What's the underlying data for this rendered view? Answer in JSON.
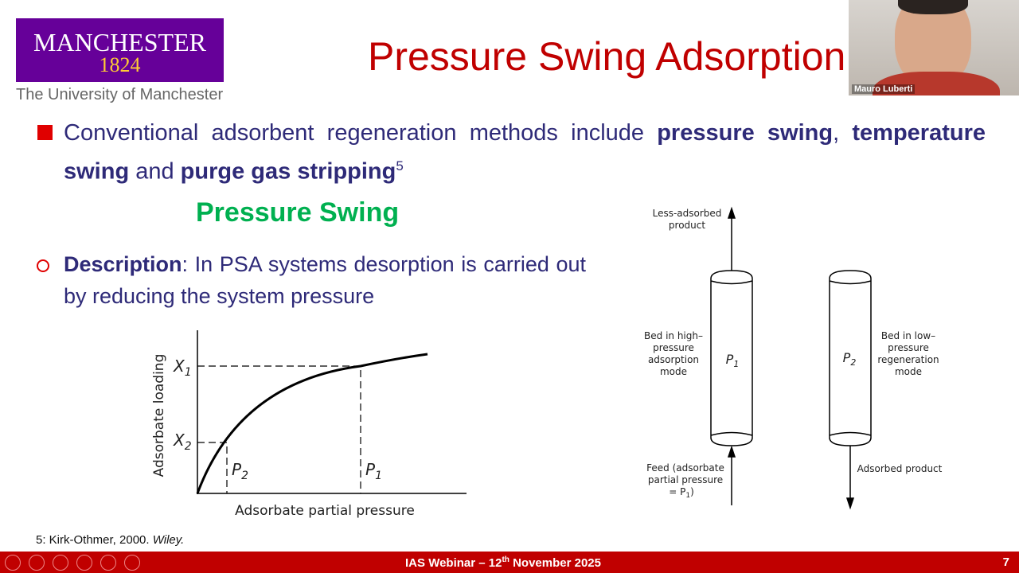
{
  "logo": {
    "name": "MANCHESTER",
    "year": "1824",
    "university": "The University of Manchester"
  },
  "slide": {
    "title": "Pressure Swing Adsorption",
    "bullet1": {
      "text": "Conventional adsorbent regeneration methods include ",
      "bold1": "pressure swing",
      "sep": ",",
      "bold2": "temperature swing",
      "and": " and ",
      "bold3": "purge gas stripping",
      "ref": "5"
    },
    "subheading": "Pressure Swing",
    "bullet2": {
      "bold": "Description",
      "text": ": In PSA systems desorption is carried out by reducing the system pressure"
    },
    "graph": {
      "y_label": "Adsorbate loading",
      "x_label": "Adsorbate partial pressure",
      "x1": {
        "main": "X",
        "sub": "1"
      },
      "x2": {
        "main": "X",
        "sub": "2"
      },
      "p1": {
        "main": "P",
        "sub": "1"
      },
      "p2": {
        "main": "P",
        "sub": "2"
      }
    },
    "diagram": {
      "top_product": [
        "Less-adsorbed",
        "product"
      ],
      "bed1_label": [
        "Bed in high–",
        "pressure",
        "adsorption",
        "mode"
      ],
      "bed1_pressure": {
        "main": "P",
        "sub": "1"
      },
      "bed2_pressure": {
        "main": "P",
        "sub": "2"
      },
      "bed2_label": [
        "Bed in low–",
        "pressure",
        "regeneration",
        "mode"
      ],
      "feed": [
        "Feed (adsorbate",
        "partial pressure",
        "= P"
      ],
      "feed_sub": "1",
      "feed_close": ")",
      "bottom_product": "Adsorbed product"
    },
    "footnote": {
      "text": "5: Kirk-Othmer, 2000. ",
      "italic": "Wiley."
    },
    "footer": {
      "text": "IAS Webinar – 12",
      "sup": "th",
      "text2": " November 2025",
      "page": "7"
    }
  },
  "video": {
    "participant": "Mauro Luberti"
  }
}
